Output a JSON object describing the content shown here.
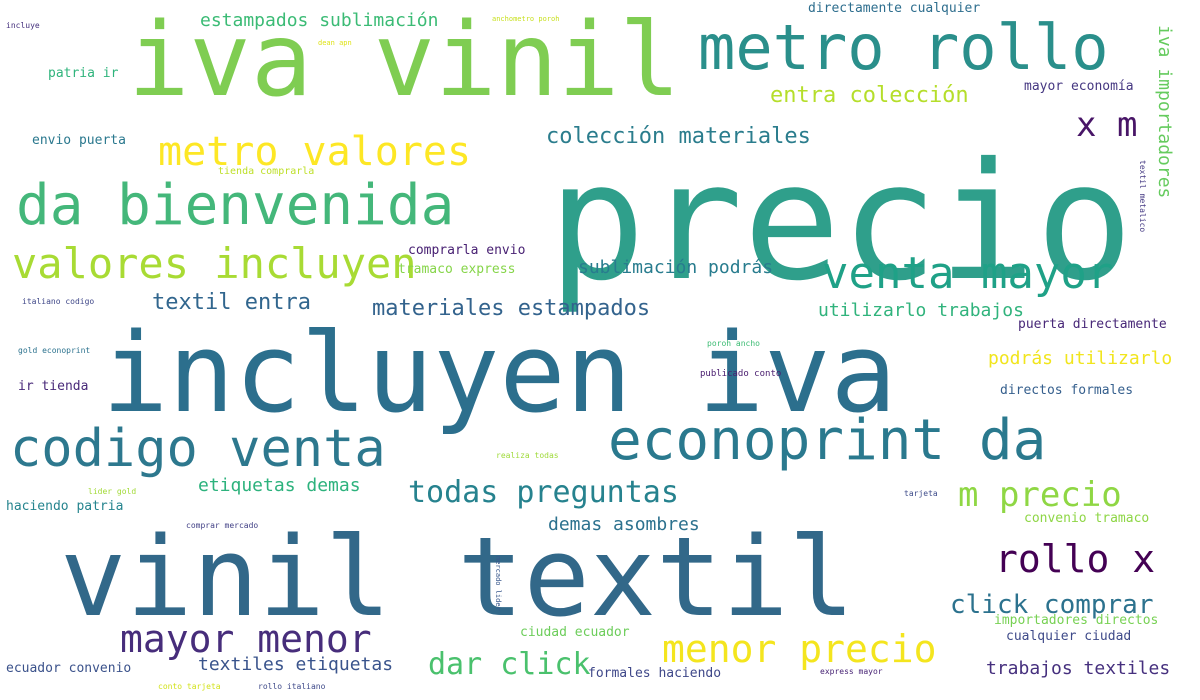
{
  "cloud": {
    "words": [
      {
        "text": "precio",
        "color": "#2f9f8b",
        "orient": "horizontal"
      },
      {
        "text": "incluyen iva",
        "color": "#2c6f8d",
        "orient": "horizontal"
      },
      {
        "text": "vinil textil",
        "color": "#326889",
        "orient": "horizontal"
      },
      {
        "text": "iva vinil",
        "color": "#7fcd52",
        "orient": "horizontal"
      },
      {
        "text": "metro rollo",
        "color": "#2a8f8b",
        "orient": "horizontal"
      },
      {
        "text": "da bienvenida",
        "color": "#44b77a",
        "orient": "horizontal"
      },
      {
        "text": "econoprint da",
        "color": "#2a798e",
        "orient": "horizontal"
      },
      {
        "text": "codigo venta",
        "color": "#2d788e",
        "orient": "horizontal"
      },
      {
        "text": "venta mayor",
        "color": "#1fa187",
        "orient": "horizontal"
      },
      {
        "text": "valores incluyen",
        "color": "#a8db34",
        "orient": "horizontal"
      },
      {
        "text": "metro valores",
        "color": "#fde725",
        "orient": "horizontal"
      },
      {
        "text": "mayor menor",
        "color": "#472d7b",
        "orient": "horizontal"
      },
      {
        "text": "menor precio",
        "color": "#f4e51e",
        "orient": "horizontal"
      },
      {
        "text": "rollo x",
        "color": "#440154",
        "orient": "horizontal"
      },
      {
        "text": "x m",
        "color": "#481567",
        "orient": "horizontal"
      },
      {
        "text": "m precio",
        "color": "#8fd744",
        "orient": "horizontal"
      },
      {
        "text": "todas preguntas",
        "color": "#26828e",
        "orient": "horizontal"
      },
      {
        "text": "dar click",
        "color": "#4ac16d",
        "orient": "horizontal"
      },
      {
        "text": "click comprar",
        "color": "#2c728e",
        "orient": "horizontal"
      },
      {
        "text": "colección materiales",
        "color": "#2b7d8d",
        "orient": "horizontal"
      },
      {
        "text": "entra colección",
        "color": "#b5de2b",
        "orient": "horizontal"
      },
      {
        "text": "materiales estampados",
        "color": "#33638d",
        "orient": "horizontal"
      },
      {
        "text": "textil entra",
        "color": "#31668e",
        "orient": "horizontal"
      },
      {
        "text": "sublimación podrás",
        "color": "#287c8e",
        "orient": "horizontal"
      },
      {
        "text": "estampados sublimación",
        "color": "#3bbb75",
        "orient": "horizontal"
      },
      {
        "text": "etiquetas demas",
        "color": "#2db27d",
        "orient": "horizontal"
      },
      {
        "text": "demas asombres",
        "color": "#2c718e",
        "orient": "horizontal"
      },
      {
        "text": "textiles etiquetas",
        "color": "#3a548c",
        "orient": "horizontal"
      },
      {
        "text": "utilizarlo trabajos",
        "color": "#30b37c",
        "orient": "horizontal"
      },
      {
        "text": "podrás utilizarlo",
        "color": "#f1e51d",
        "orient": "horizontal"
      },
      {
        "text": "trabajos textiles",
        "color": "#46307e",
        "orient": "horizontal"
      },
      {
        "text": "iva importadores",
        "color": "#65cb5e",
        "orient": "vertical"
      },
      {
        "text": "puerta directamente",
        "color": "#482878",
        "orient": "horizontal"
      },
      {
        "text": "mayor economía",
        "color": "#453781",
        "orient": "horizontal"
      },
      {
        "text": "directos formales",
        "color": "#355f8d",
        "orient": "horizontal"
      },
      {
        "text": "convenio tramaco",
        "color": "#8ed645",
        "orient": "horizontal"
      },
      {
        "text": "importadores directos",
        "color": "#77d153",
        "orient": "horizontal"
      },
      {
        "text": "cualquier ciudad",
        "color": "#3e4a89",
        "orient": "horizontal"
      },
      {
        "text": "ciudad ecuador",
        "color": "#6ccd5a",
        "orient": "horizontal"
      },
      {
        "text": "ecuador convenio",
        "color": "#3b528b",
        "orient": "horizontal"
      },
      {
        "text": "haciendo patria",
        "color": "#25848e",
        "orient": "horizontal"
      },
      {
        "text": "formales haciendo",
        "color": "#3f4889",
        "orient": "horizontal"
      },
      {
        "text": "patria ir",
        "color": "#2fb47c",
        "orient": "horizontal"
      },
      {
        "text": "envio puerta",
        "color": "#2a788e",
        "orient": "horizontal"
      },
      {
        "text": "comprarla envio",
        "color": "#482173",
        "orient": "horizontal"
      },
      {
        "text": "tramaco express",
        "color": "#86d549",
        "orient": "horizontal"
      },
      {
        "text": "ir tienda",
        "color": "#482979",
        "orient": "horizontal"
      },
      {
        "text": "directamente cualquier",
        "color": "#2e6e8e",
        "orient": "horizontal"
      },
      {
        "text": "tienda comprarla",
        "color": "#bddf26",
        "orient": "horizontal"
      },
      {
        "text": "publicado conto",
        "color": "#481c6e",
        "orient": "horizontal"
      },
      {
        "text": "italiano codigo",
        "color": "#3f4788",
        "orient": "horizontal"
      },
      {
        "text": "gold econoprint",
        "color": "#2c728e",
        "orient": "horizontal"
      },
      {
        "text": "incluye",
        "color": "#46327e",
        "orient": "horizontal"
      },
      {
        "text": "anchometro poroh",
        "color": "#c8e020",
        "orient": "horizontal"
      },
      {
        "text": "dean apn",
        "color": "#dfe318",
        "orient": "horizontal"
      },
      {
        "text": "textil metalico",
        "color": "#443983",
        "orient": "vertical"
      },
      {
        "text": "realiza todas",
        "color": "#9fda3a",
        "orient": "horizontal"
      },
      {
        "text": "poroh ancho",
        "color": "#3dbc74",
        "orient": "horizontal"
      },
      {
        "text": "lider gold",
        "color": "#a2da37",
        "orient": "horizontal"
      },
      {
        "text": "comprar mercado",
        "color": "#424186",
        "orient": "horizontal"
      },
      {
        "text": "tarjeta",
        "color": "#3e4c8a",
        "orient": "horizontal"
      },
      {
        "text": "mercado lider",
        "color": "#38588c",
        "orient": "vertical"
      },
      {
        "text": "express mayor",
        "color": "#482475",
        "orient": "horizontal"
      },
      {
        "text": "conto tarjeta",
        "color": "#d2e21b",
        "orient": "horizontal"
      },
      {
        "text": "rollo italiano",
        "color": "#3e4989",
        "orient": "horizontal"
      }
    ]
  }
}
